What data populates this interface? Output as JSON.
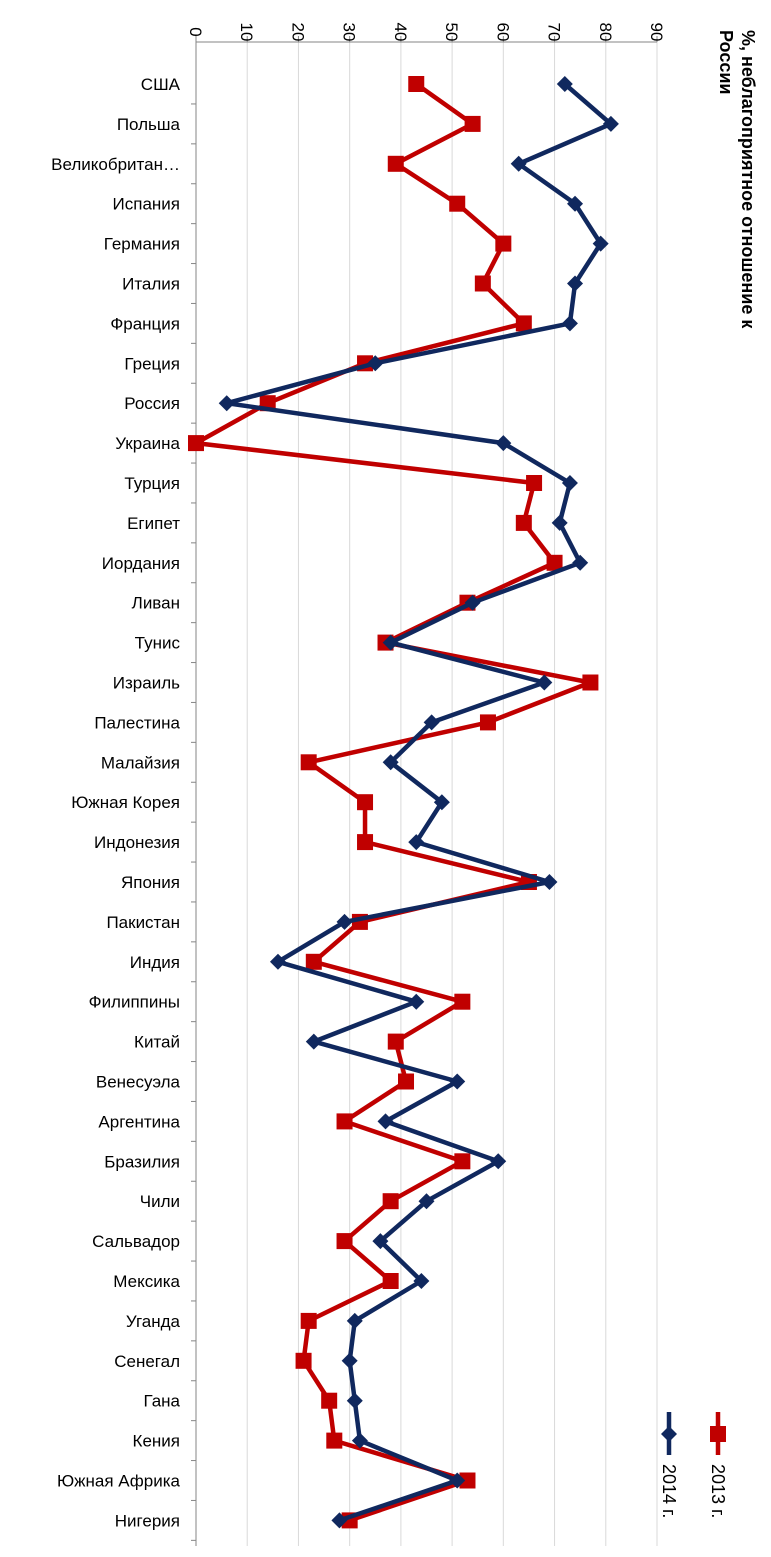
{
  "chart_data": {
    "type": "line",
    "title_lines": [
      "%, неблагоприятное отношение к",
      "России"
    ],
    "xlim": [
      0,
      90
    ],
    "ticks": [
      0,
      10,
      20,
      30,
      40,
      50,
      60,
      70,
      80,
      90
    ],
    "grid": true,
    "legend_position": "top-right",
    "categories": [
      "США",
      "Польша",
      "Великобритан…",
      "Испания",
      "Германия",
      "Италия",
      "Франция",
      "Греция",
      "Россия",
      "Украина",
      "Турция",
      "Египет",
      "Иордания",
      "Ливан",
      "Тунис",
      "Израиль",
      "Палестина",
      "Малайзия",
      "Южная Корея",
      "Индонезия",
      "Япония",
      "Пакистан",
      "Индия",
      "Филиппины",
      "Китай",
      "Венесуэла",
      "Аргентина",
      "Бразилия",
      "Чили",
      "Сальвадор",
      "Мексика",
      "Уганда",
      "Сенегал",
      "Гана",
      "Кения",
      "Южная Африка",
      "Нигерия"
    ],
    "series": [
      {
        "name": "2013 г.",
        "color": "#c00000",
        "marker": "square",
        "values": [
          43,
          54,
          39,
          51,
          60,
          56,
          64,
          33,
          14,
          0,
          66,
          64,
          70,
          53,
          37,
          77,
          57,
          22,
          33,
          33,
          65,
          32,
          23,
          52,
          39,
          41,
          29,
          52,
          38,
          29,
          38,
          22,
          21,
          26,
          27,
          53,
          30
        ]
      },
      {
        "name": "2014 г.",
        "color": "#10285e",
        "marker": "diamond",
        "values": [
          72,
          81,
          63,
          74,
          79,
          74,
          73,
          35,
          6,
          60,
          73,
          71,
          75,
          54,
          38,
          68,
          46,
          38,
          48,
          43,
          69,
          29,
          16,
          43,
          23,
          51,
          37,
          59,
          45,
          36,
          44,
          31,
          30,
          31,
          32,
          51,
          28
        ]
      }
    ]
  }
}
